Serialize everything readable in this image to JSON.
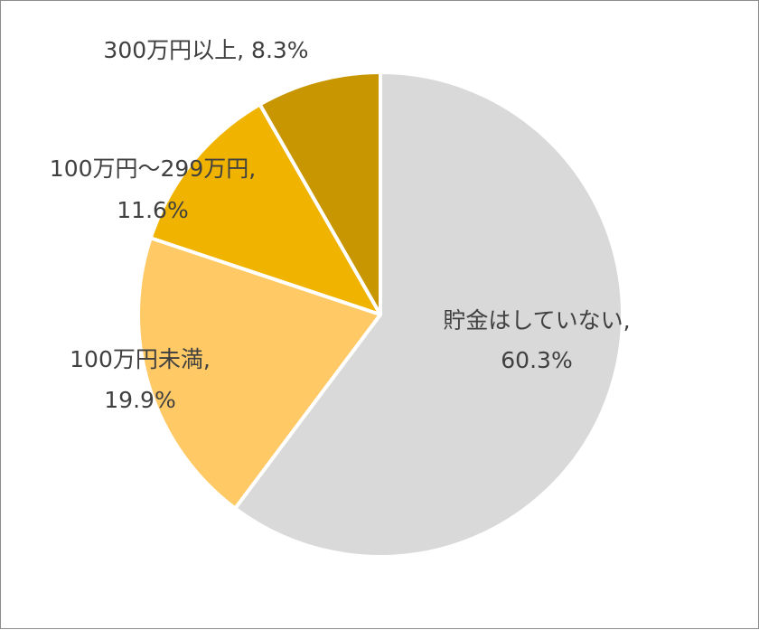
{
  "chart_data": {
    "type": "pie",
    "title": "",
    "slices": [
      {
        "label": "貯金はしていない",
        "value": 60.3,
        "value_label": "60.3%",
        "color": "#d9d9d9"
      },
      {
        "label": "100万円未満",
        "value": 19.9,
        "value_label": "19.9%",
        "color": "#ffc966"
      },
      {
        "label": "100万円～299万円",
        "value": 11.6,
        "value_label": "11.6%",
        "color": "#f0b400"
      },
      {
        "label": "300万円以上",
        "value": 8.3,
        "value_label": "8.3%",
        "color": "#c89600"
      }
    ],
    "start": "12 o'clock",
    "direction": "clockwise",
    "legend": "none",
    "data_labels": "category name and percentage"
  }
}
